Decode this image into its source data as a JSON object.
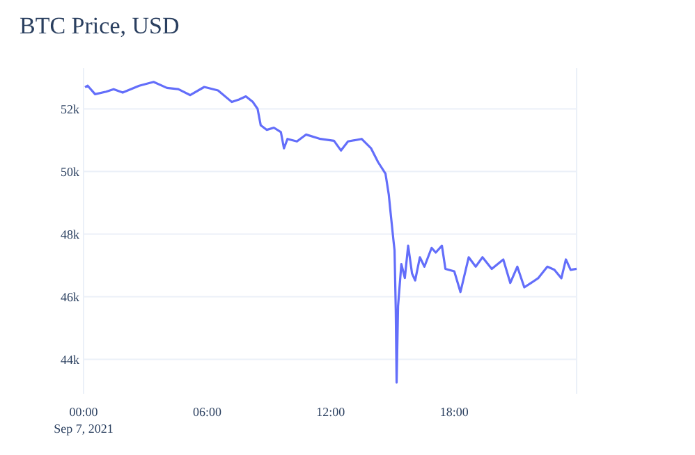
{
  "chart_data": {
    "type": "line",
    "title": "BTC Price, USD",
    "x": [
      0.07,
      0.2,
      0.56,
      1.1,
      1.46,
      1.9,
      2.7,
      3.4,
      4.05,
      4.6,
      5.18,
      5.86,
      6.53,
      7.2,
      7.55,
      7.88,
      8.22,
      8.45,
      8.6,
      8.9,
      9.24,
      9.58,
      9.73,
      9.9,
      10.36,
      10.8,
      11.5,
      12.16,
      12.5,
      12.84,
      13.5,
      13.96,
      14.3,
      14.66,
      14.82,
      14.91,
      15.05,
      15.1,
      15.16,
      15.2,
      15.27,
      15.43,
      15.6,
      15.76,
      15.95,
      16.1,
      16.33,
      16.55,
      16.9,
      17.1,
      17.4,
      17.57,
      18.0,
      18.3,
      18.7,
      19.04,
      19.37,
      19.82,
      20.38,
      20.72,
      21.06,
      21.4,
      21.73,
      22.07,
      22.52,
      22.86,
      23.2,
      23.42,
      23.65,
      23.94
    ],
    "series": [
      {
        "color": "#636efa",
        "values": [
          52690,
          52740,
          52470,
          52550,
          52630,
          52520,
          52740,
          52860,
          52670,
          52630,
          52440,
          52700,
          52590,
          52220,
          52300,
          52400,
          52220,
          52000,
          51480,
          51330,
          51400,
          51260,
          50740,
          51040,
          50960,
          51180,
          51040,
          50980,
          50670,
          50960,
          51040,
          50740,
          50300,
          49930,
          49260,
          48670,
          47780,
          47480,
          45560,
          43260,
          45700,
          47040,
          46600,
          47630,
          46740,
          46520,
          47260,
          46960,
          47560,
          47410,
          47630,
          46890,
          46810,
          46150,
          47260,
          46960,
          47260,
          46890,
          47190,
          46440,
          46960,
          46300,
          46440,
          46590,
          46960,
          46860,
          46590,
          47190,
          46860,
          46890
        ]
      }
    ],
    "xlim": [
      0,
      23.94
    ],
    "xticks": [
      {
        "value": 0,
        "label": "00:00\nSep 7, 2021"
      },
      {
        "value": 6,
        "label": "06:00"
      },
      {
        "value": 12,
        "label": "12:00"
      },
      {
        "value": 18,
        "label": "18:00"
      }
    ],
    "ylim": [
      42900,
      53300
    ],
    "yticks": [
      {
        "value": 44000,
        "label": "44k"
      },
      {
        "value": 46000,
        "label": "46k"
      },
      {
        "value": 48000,
        "label": "48k"
      },
      {
        "value": 50000,
        "label": "50k"
      },
      {
        "value": 52000,
        "label": "52k"
      }
    ],
    "grid": "y",
    "line_style": "solid",
    "marker": "none"
  }
}
